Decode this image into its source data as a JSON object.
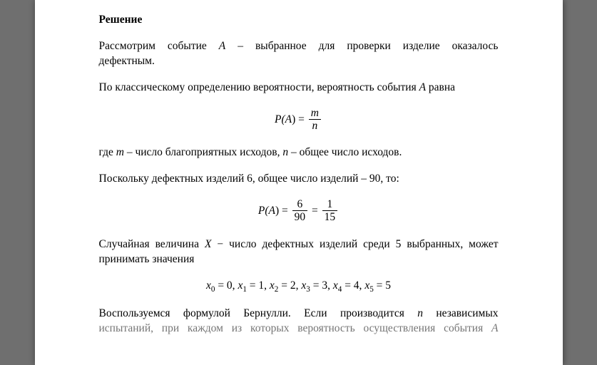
{
  "colors": {
    "page_bg": "#ffffff",
    "viewer_bg": "#6f6f6f",
    "text": "#000000"
  },
  "typography": {
    "body_family": "Times New Roman",
    "body_size_pt": 12,
    "math_family": "Cambria Math",
    "heading_weight": "bold"
  },
  "heading": "Решение",
  "p1": {
    "line1_a": "Рассмотрим событие ",
    "var1": "A",
    "line1_b": " – выбранное для проверки изделие оказалось",
    "line2": "дефектным."
  },
  "p2": {
    "text_a": "По классическому определению вероятности, вероятность события ",
    "var": "A",
    "text_b": " равна"
  },
  "eq1": {
    "lhs_a": "P(",
    "lhs_var": "A",
    "lhs_b": ") = ",
    "num": "m",
    "den": "n"
  },
  "p3": {
    "a": "где ",
    "m": "m",
    "b": " – число благоприятных исходов, ",
    "n": "n",
    "c": " – общее число исходов."
  },
  "p4": "Поскольку дефектных изделий 6, общее число изделий – 90, то:",
  "eq2": {
    "lhs_a": "P(",
    "lhs_var": "A",
    "lhs_b": ") = ",
    "num1": "6",
    "den1": "90",
    "mid": " = ",
    "num2": "1",
    "den2": "15"
  },
  "p5": {
    "a": "Случайная величина ",
    "x": "X",
    "b": " − число дефектных изделий среди 5 выбранных, может",
    "line2": "принимать значения"
  },
  "eq3": {
    "items": [
      {
        "var": "x",
        "sub": "0",
        "eq": " = 0,  "
      },
      {
        "var": "x",
        "sub": "1",
        "eq": " = 1,  "
      },
      {
        "var": "x",
        "sub": "2",
        "eq": " = 2,  "
      },
      {
        "var": "x",
        "sub": "3",
        "eq": " = 3,  "
      },
      {
        "var": "x",
        "sub": "4",
        "eq": " = 4,  "
      },
      {
        "var": "x",
        "sub": "5",
        "eq": " = 5"
      }
    ]
  },
  "p6": {
    "line1_a": "Воспользуемся формулой Бернулли. Если производится ",
    "n": "n",
    "line1_b": " независимых",
    "line2_a": "испытаний, при каждом из которых вероятность осуществления события ",
    "A": "A"
  }
}
